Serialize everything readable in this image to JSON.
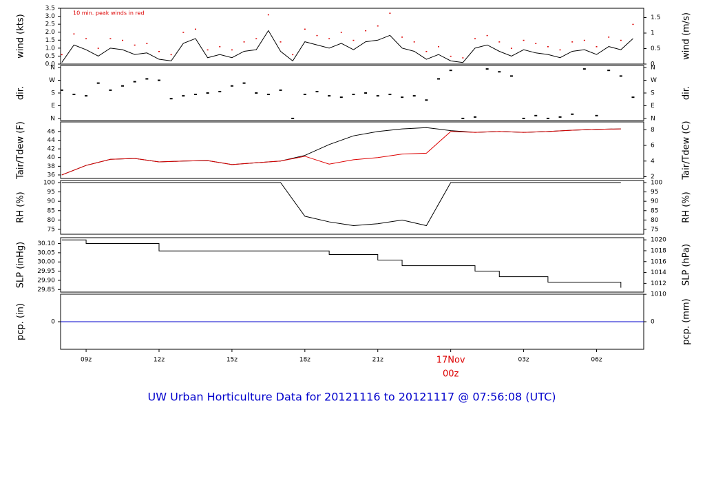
{
  "title": "UW Urban Horticulture Data for 20121116  to  20121117 @ 07:56:08  (UTC)",
  "chart_data": [
    {
      "type": "line",
      "ylabel": "wind (kts)",
      "y2label": "wind (m/s)",
      "annotation": "10 min. peak winds in red",
      "annotation_color": "#dd0000",
      "xlim": [
        7.95,
        31.94
      ],
      "x": [
        8,
        8.5,
        9,
        9.5,
        10,
        10.5,
        11,
        11.5,
        12,
        12.5,
        13,
        13.5,
        14,
        14.5,
        15,
        15.5,
        16,
        16.5,
        17,
        17.5,
        18,
        18.5,
        19,
        19.5,
        20,
        20.5,
        21,
        21.5,
        22,
        22.5,
        23,
        23.5,
        24,
        24.5,
        25,
        25.5,
        26,
        26.5,
        27,
        27.5,
        28,
        28.5,
        29,
        29.5,
        30,
        30.5,
        31,
        31.5
      ],
      "series": [
        {
          "color": "#000000",
          "values": [
            0.1,
            1.2,
            0.9,
            0.5,
            1.0,
            0.9,
            0.6,
            0.7,
            0.3,
            0.2,
            1.3,
            1.6,
            0.4,
            0.6,
            0.4,
            0.8,
            0.9,
            2.1,
            0.8,
            0.2,
            1.4,
            1.2,
            1.0,
            1.3,
            0.9,
            1.4,
            1.5,
            1.8,
            1.0,
            0.8,
            0.3,
            0.6,
            0.2,
            0.1,
            1.0,
            1.2,
            0.8,
            0.5,
            0.9,
            0.7,
            0.6,
            0.4,
            0.8,
            0.9,
            0.6,
            1.1,
            0.9,
            1.6
          ]
        },
        {
          "color": "#dd0000",
          "marker": "dot",
          "values": [
            0.6,
            1.9,
            1.6,
            1.0,
            1.6,
            1.5,
            1.2,
            1.3,
            0.8,
            0.6,
            2.0,
            2.2,
            0.9,
            1.1,
            0.9,
            1.4,
            1.6,
            3.1,
            1.4,
            0.6,
            2.2,
            1.8,
            1.6,
            2.0,
            1.5,
            2.1,
            2.4,
            3.2,
            1.7,
            1.4,
            0.8,
            1.1,
            0.5,
            0.4,
            1.6,
            1.8,
            1.4,
            1.0,
            1.5,
            1.3,
            1.1,
            0.9,
            1.4,
            1.5,
            1.1,
            1.7,
            1.5,
            2.5
          ]
        }
      ],
      "ylim": [
        0,
        3.5
      ],
      "yticks": [
        {
          "value": 0,
          "label": "0.0"
        },
        0.5,
        {
          "value": 1,
          "label": "1.0"
        },
        1.5,
        {
          "value": 2,
          "label": "2.0"
        },
        2.5,
        {
          "value": 3,
          "label": "3.0"
        },
        3.5
      ],
      "y2lim": [
        0,
        1.8
      ],
      "y2ticks": [
        0,
        0.5,
        1,
        1.5
      ]
    },
    {
      "type": "scatter",
      "ylabel": "dir.",
      "y2label": "dir.",
      "xlim": [
        7.95,
        31.94
      ],
      "x": [
        8,
        8.5,
        9,
        9.5,
        10,
        10.5,
        11,
        11.5,
        12,
        12.5,
        13,
        13.5,
        14,
        14.5,
        15,
        15.5,
        16,
        16.5,
        17,
        17.5,
        18,
        18.5,
        19,
        19.5,
        20,
        20.5,
        21,
        21.5,
        22,
        22.5,
        23,
        23.5,
        24,
        24.5,
        25,
        25.5,
        26,
        26.5,
        27,
        27.5,
        28,
        28.5,
        29,
        29.5,
        30,
        30.5,
        31,
        31.5
      ],
      "series": [
        {
          "color": "#000000",
          "values": [
            200,
            170,
            160,
            250,
            200,
            230,
            260,
            280,
            270,
            140,
            160,
            170,
            180,
            190,
            230,
            250,
            180,
            170,
            200,
            0,
            170,
            190,
            160,
            150,
            170,
            180,
            160,
            170,
            150,
            160,
            130,
            280,
            340,
            0,
            10,
            350,
            330,
            300,
            0,
            20,
            0,
            10,
            30,
            350,
            20,
            340,
            300,
            150
          ]
        }
      ],
      "ylim": [
        -15,
        375
      ],
      "yticks": [
        {
          "value": 0,
          "label": "N"
        },
        {
          "value": 90,
          "label": "E"
        },
        {
          "value": 180,
          "label": "S"
        },
        {
          "value": 270,
          "label": "W"
        },
        {
          "value": 360,
          "label": "N"
        }
      ],
      "y2lim": [
        -15,
        375
      ],
      "y2ticks": [
        {
          "value": 0,
          "label": "N"
        },
        {
          "value": 90,
          "label": "E"
        },
        {
          "value": 180,
          "label": "S"
        },
        {
          "value": 270,
          "label": "W"
        },
        {
          "value": 360,
          "label": "N"
        }
      ]
    },
    {
      "type": "line",
      "ylabel": "Tair/Tdew (F)",
      "y2label": "Tair/Tdew (C)",
      "xlim": [
        7.95,
        31.94
      ],
      "x": [
        8,
        9,
        10,
        11,
        12,
        13,
        14,
        15,
        16,
        17,
        18,
        19,
        20,
        21,
        22,
        23,
        24,
        25,
        26,
        27,
        28,
        29,
        30,
        31
      ],
      "series": [
        {
          "color": "#000000",
          "values": [
            36.0,
            38.2,
            39.6,
            39.8,
            39.0,
            39.2,
            39.3,
            38.4,
            38.8,
            39.2,
            40.5,
            43.0,
            45.0,
            46.0,
            46.6,
            46.9,
            46.2,
            45.8,
            46.0,
            45.8,
            46.0,
            46.3,
            46.5,
            46.6
          ]
        },
        {
          "color": "#dd0000",
          "values": [
            36.0,
            38.2,
            39.6,
            39.8,
            39.0,
            39.2,
            39.3,
            38.4,
            38.8,
            39.2,
            40.3,
            38.5,
            39.5,
            40.0,
            40.8,
            41.0,
            46.0,
            45.8,
            46.0,
            45.8,
            46.0,
            46.3,
            46.5,
            46.6
          ]
        }
      ],
      "ylim": [
        35.2,
        48.2
      ],
      "yticks": [
        36,
        38,
        40,
        42,
        44,
        46
      ],
      "y2lim": [
        1.78,
        9.0
      ],
      "y2ticks": [
        2,
        4,
        6,
        8
      ]
    },
    {
      "type": "line",
      "ylabel": "RH (%)",
      "y2label": "RH (%)",
      "xlim": [
        7.95,
        31.94
      ],
      "x": [
        8,
        9,
        10,
        11,
        12,
        13,
        14,
        15,
        16,
        17,
        18,
        19,
        20,
        21,
        22,
        23,
        24,
        25,
        26,
        27,
        28,
        29,
        30,
        31
      ],
      "series": [
        {
          "color": "#000000",
          "values": [
            100,
            100,
            100,
            100,
            100,
            100,
            100,
            100,
            100,
            100,
            82,
            79,
            77,
            78,
            80,
            77,
            100,
            100,
            100,
            100,
            100,
            100,
            100,
            100
          ]
        }
      ],
      "ylim": [
        72.4,
        101.1
      ],
      "yticks": [
        75,
        80,
        85,
        90,
        95,
        100
      ],
      "y2lim": [
        72.4,
        101.1
      ],
      "y2ticks": [
        75,
        80,
        85,
        90,
        95,
        100
      ]
    },
    {
      "type": "line",
      "ylabel": "SLP (inHg)",
      "y2label": "SLP (hPa)",
      "step": true,
      "xlim": [
        7.95,
        31.94
      ],
      "x": [
        8,
        9,
        10,
        11,
        12,
        13,
        14,
        15,
        16,
        17,
        18,
        19,
        20,
        21,
        22,
        23,
        24,
        25,
        26,
        27,
        28,
        29,
        30,
        31
      ],
      "series": [
        {
          "color": "#000000",
          "values": [
            30.12,
            30.1,
            30.1,
            30.1,
            30.06,
            30.06,
            30.06,
            30.06,
            30.06,
            30.06,
            30.06,
            30.04,
            30.04,
            30.01,
            29.98,
            29.98,
            29.98,
            29.95,
            29.92,
            29.92,
            29.89,
            29.89,
            29.89,
            29.86
          ]
        }
      ],
      "ylim": [
        29.836,
        30.132
      ],
      "yticks": [
        {
          "value": 29.85,
          "label": "29.85"
        },
        {
          "value": 29.9,
          "label": "29.90"
        },
        {
          "value": 29.95,
          "label": "29.95"
        },
        {
          "value": 30,
          "label": "30.00"
        },
        {
          "value": 30.05,
          "label": "30.05"
        },
        {
          "value": 30.1,
          "label": "30.10"
        }
      ],
      "y2lim": [
        1010.4,
        1020.4
      ],
      "y2ticks": [
        1010,
        1012,
        1014,
        1016,
        1018,
        1020
      ]
    },
    {
      "type": "line",
      "ylabel": "pcp. (in)",
      "y2label": "pcp. (mm)",
      "xlim": [
        7.95,
        31.94
      ],
      "x": [
        7.95,
        31.94
      ],
      "series": [
        {
          "color": "#0000cc",
          "values": [
            0,
            0
          ]
        }
      ],
      "ylim": [
        -1,
        1
      ],
      "yticks": [
        0
      ],
      "y2lim": [
        -1,
        1
      ],
      "y2ticks": [
        0
      ],
      "xticks": [
        {
          "value": 9,
          "label": "09z"
        },
        {
          "value": 12,
          "label": "12z"
        },
        {
          "value": 15,
          "label": "15z"
        },
        {
          "value": 18,
          "label": "18z"
        },
        {
          "value": 21,
          "label": "21z"
        },
        {
          "value": 24,
          "label": "00z"
        },
        {
          "value": 27,
          "label": "03z"
        },
        {
          "value": 30,
          "label": "06z"
        }
      ],
      "date_tick": {
        "value": 24,
        "label": "17Nov"
      },
      "date_color": "#dd0000"
    }
  ]
}
